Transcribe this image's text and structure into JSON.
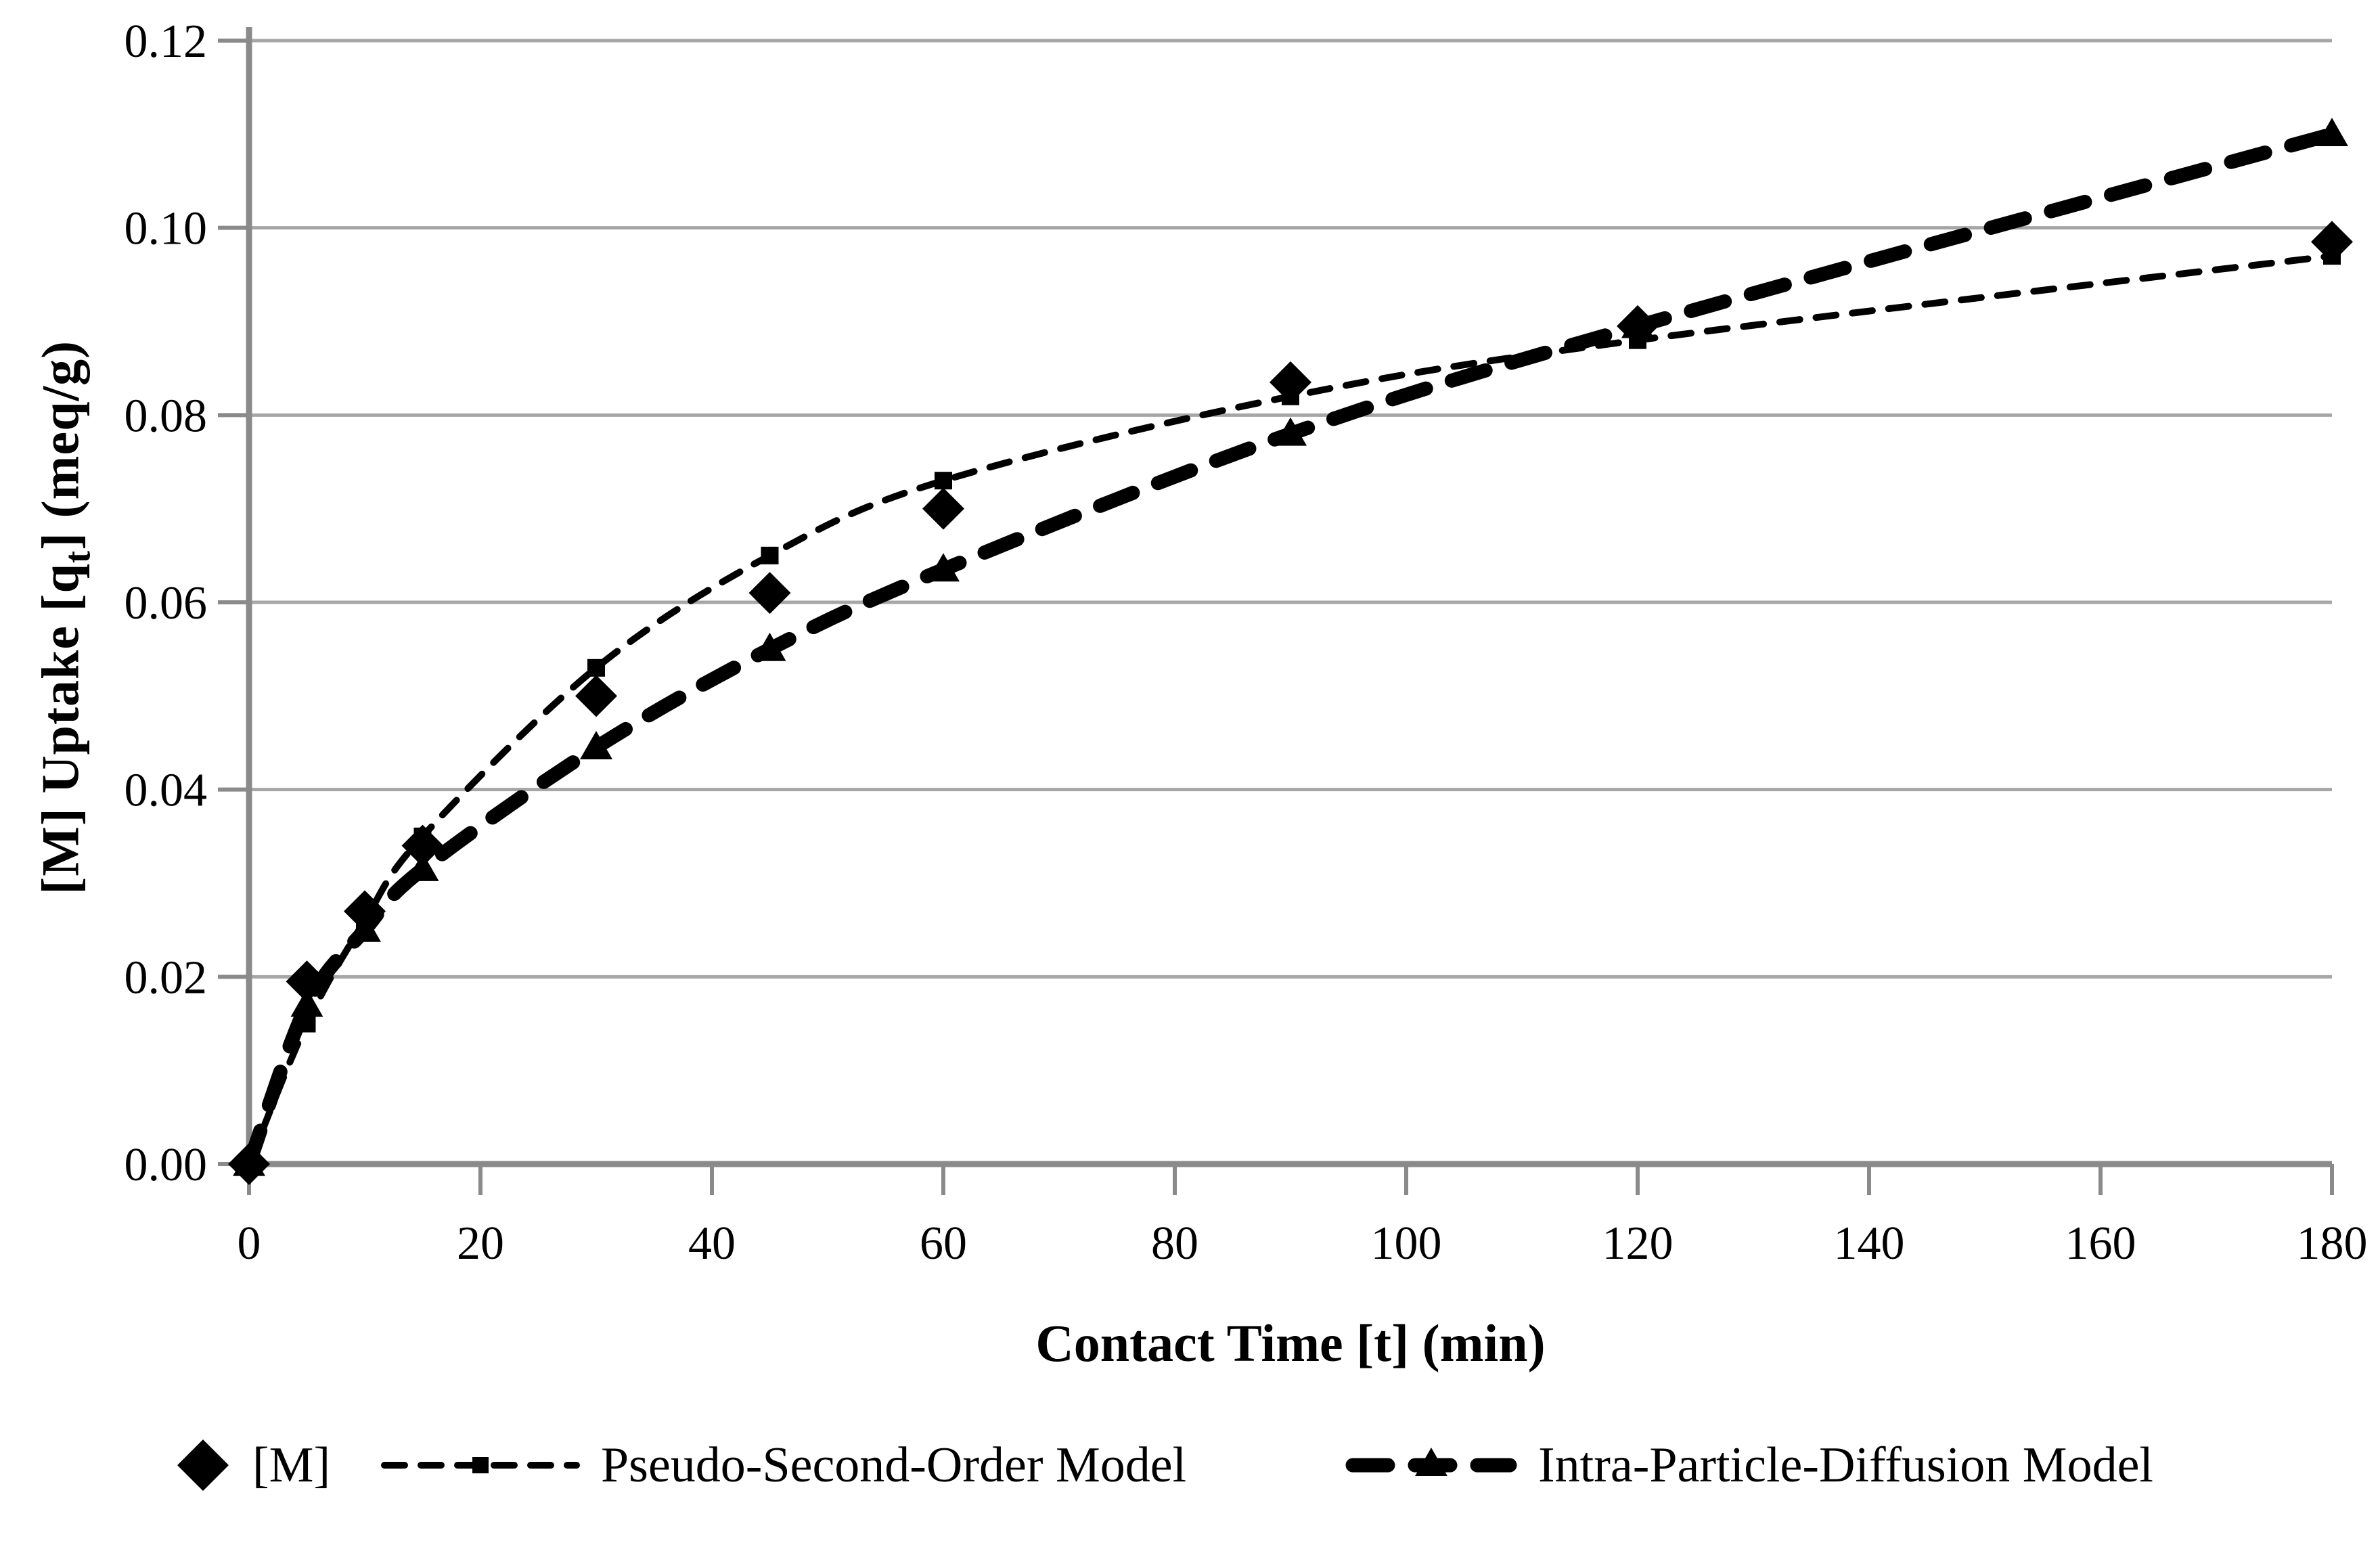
{
  "figure": {
    "background": "#ffffff",
    "text_color": "#000000",
    "grid_color": "#a6a6a6",
    "axis_color": "#8a8a8a",
    "series_color": "#000000"
  },
  "chart_data": {
    "type": "scatter",
    "x": [
      0,
      5,
      10,
      15,
      30,
      45,
      60,
      90,
      120,
      180
    ],
    "series": [
      {
        "name": "[M]",
        "marker": "diamond",
        "line": "none",
        "values": [
          0.0,
          0.0195,
          0.027,
          0.034,
          0.05,
          0.061,
          0.07,
          0.0835,
          0.0895,
          0.0985
        ]
      },
      {
        "name": "Pseudo-Second-Order Model",
        "marker": "square",
        "line": "dashed-thin",
        "values": [
          0.0,
          0.015,
          0.026,
          0.035,
          0.053,
          0.065,
          0.073,
          0.082,
          0.088,
          0.097
        ]
      },
      {
        "name": "Intra-Particle-Diffusion Model",
        "marker": "triangle",
        "line": "dashed-thick",
        "values": [
          0.0,
          0.017,
          0.025,
          0.0315,
          0.0445,
          0.055,
          0.0635,
          0.078,
          0.0895,
          0.11
        ]
      }
    ],
    "xlabel": "Contact Time [t] (min)",
    "ylabel": {
      "prefix": "[M] Uptake [q",
      "sub": "t",
      "suffix": "] (meq/g)"
    },
    "xlim": [
      0,
      180
    ],
    "ylim": [
      0.0,
      0.12
    ],
    "x_ticks": [
      "0",
      "20",
      "40",
      "60",
      "80",
      "100",
      "120",
      "140",
      "160",
      "180"
    ],
    "y_ticks": [
      "0.00",
      "0.02",
      "0.04",
      "0.06",
      "0.08",
      "0.10",
      "0.12"
    ],
    "grid": "horizontal-only",
    "legend_position": "bottom"
  }
}
